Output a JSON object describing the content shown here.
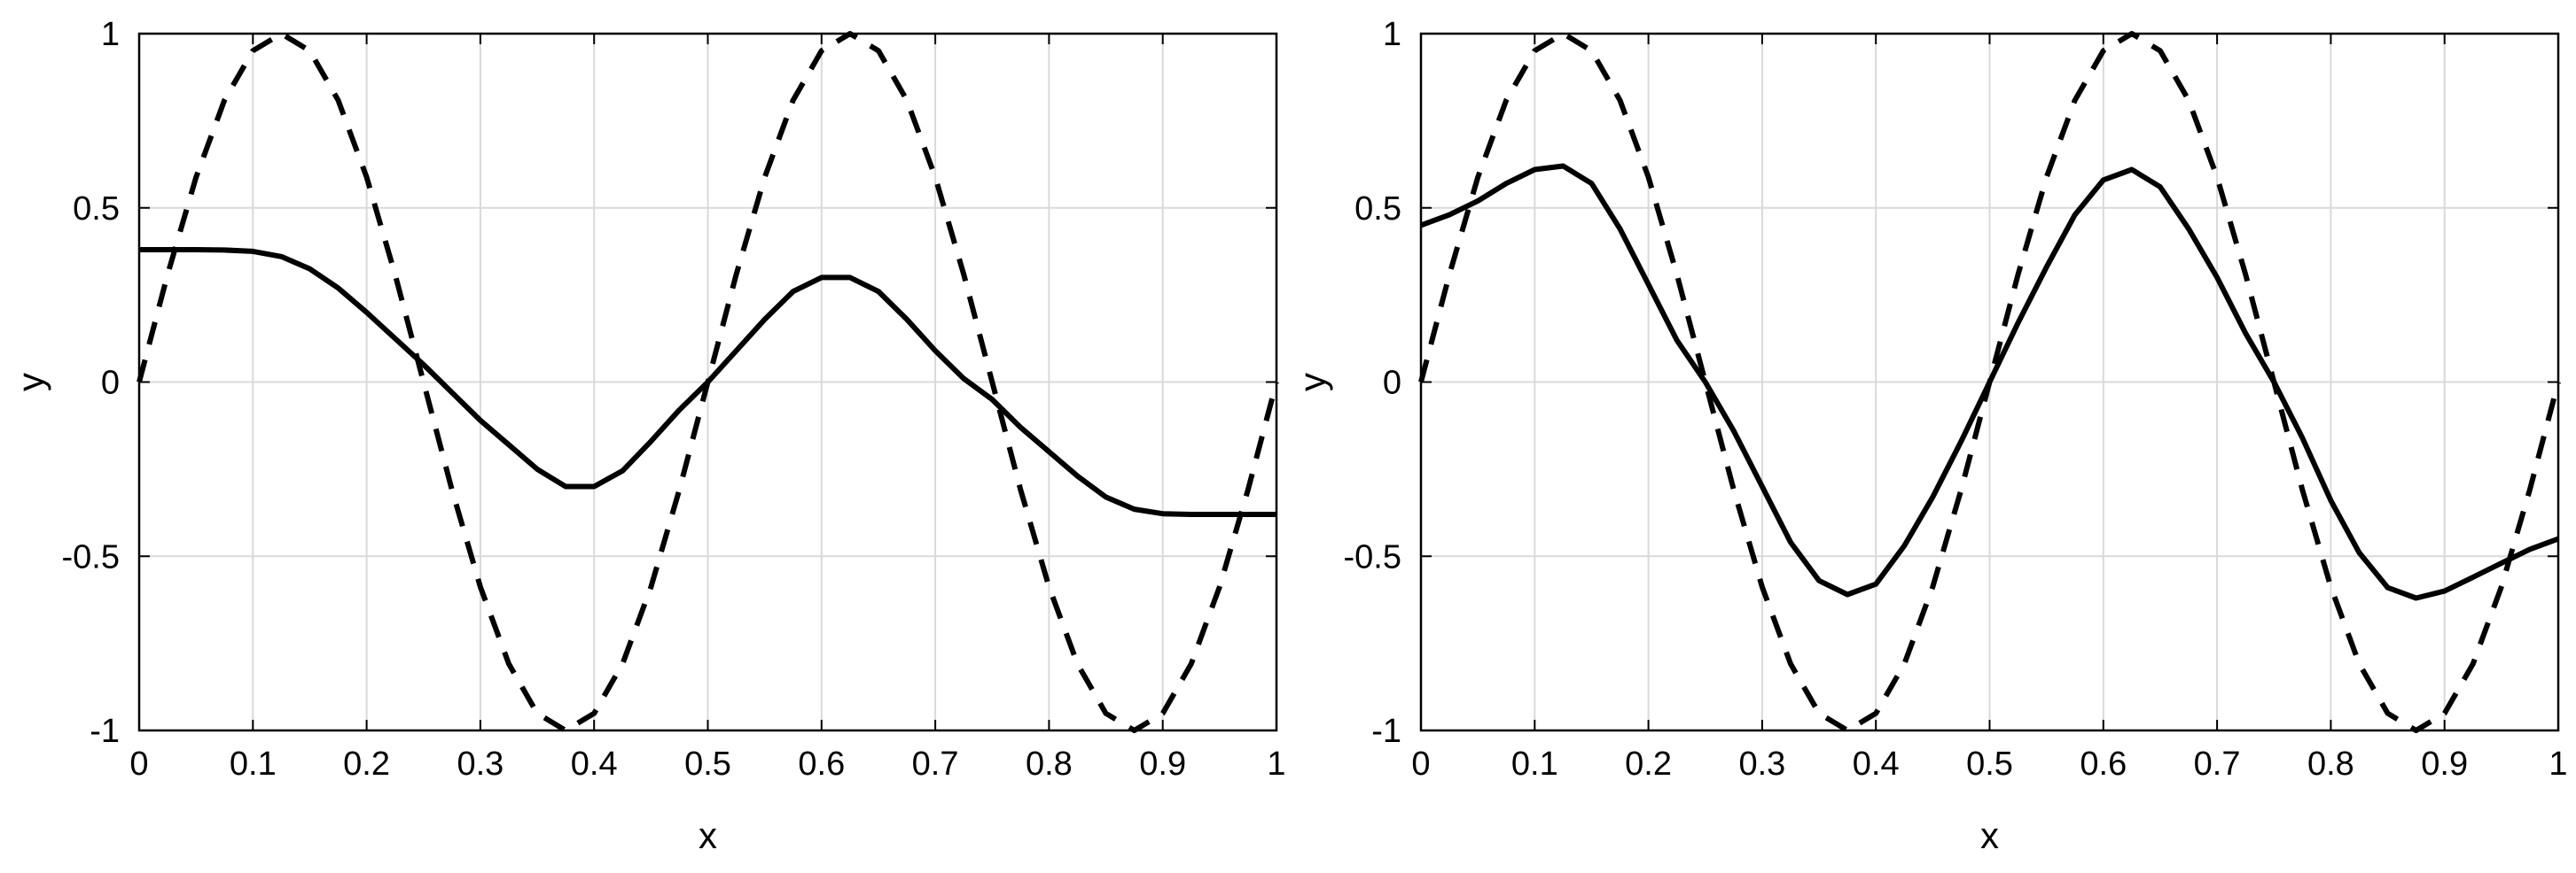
{
  "chart_data": [
    {
      "type": "line",
      "xlabel": "x",
      "ylabel": "y",
      "xlim": [
        0,
        1
      ],
      "ylim": [
        -1,
        1
      ],
      "xticks": [
        0,
        0.1,
        0.2,
        0.3,
        0.4,
        0.5,
        0.6,
        0.7,
        0.8,
        0.9,
        1
      ],
      "xtick_labels": [
        "0",
        "0.1",
        "0.2",
        "0.3",
        "0.4",
        "0.5",
        "0.6",
        "0.7",
        "0.8",
        "0.9",
        "1"
      ],
      "yticks": [
        -1,
        -0.5,
        0,
        0.5,
        1
      ],
      "ytick_labels": [
        "-1",
        "-0.5",
        "0",
        "0.5",
        "1"
      ],
      "grid": true,
      "series": [
        {
          "style": "dashed",
          "color": "#000000",
          "x": [
            0,
            0.025,
            0.05,
            0.075,
            0.1,
            0.125,
            0.15,
            0.175,
            0.2,
            0.225,
            0.25,
            0.275,
            0.3,
            0.325,
            0.35,
            0.375,
            0.4,
            0.425,
            0.45,
            0.475,
            0.5,
            0.525,
            0.55,
            0.575,
            0.6,
            0.625,
            0.65,
            0.675,
            0.7,
            0.725,
            0.75,
            0.775,
            0.8,
            0.825,
            0.85,
            0.875,
            0.9,
            0.925,
            0.95,
            0.975,
            1
          ],
          "y": [
            0,
            0.309,
            0.588,
            0.809,
            0.951,
            1,
            0.951,
            0.809,
            0.588,
            0.309,
            0,
            -0.309,
            -0.588,
            -0.809,
            -0.951,
            -1,
            -0.951,
            -0.809,
            -0.588,
            -0.309,
            0,
            0.309,
            0.588,
            0.809,
            0.951,
            1,
            0.951,
            0.809,
            0.588,
            0.309,
            0,
            -0.309,
            -0.588,
            -0.809,
            -0.951,
            -1,
            -0.951,
            -0.809,
            -0.588,
            -0.309,
            0
          ]
        },
        {
          "style": "solid",
          "color": "#000000",
          "x": [
            0,
            0.025,
            0.05,
            0.075,
            0.1,
            0.125,
            0.15,
            0.175,
            0.2,
            0.225,
            0.25,
            0.275,
            0.3,
            0.325,
            0.35,
            0.375,
            0.4,
            0.425,
            0.45,
            0.475,
            0.5,
            0.525,
            0.55,
            0.575,
            0.6,
            0.625,
            0.65,
            0.675,
            0.7,
            0.725,
            0.75,
            0.775,
            0.8,
            0.825,
            0.85,
            0.875,
            0.9,
            0.925,
            0.95,
            0.975,
            1
          ],
          "y": [
            0.38,
            0.38,
            0.38,
            0.379,
            0.375,
            0.36,
            0.325,
            0.27,
            0.2,
            0.125,
            0.05,
            -0.03,
            -0.11,
            -0.18,
            -0.25,
            -0.3,
            -0.3,
            -0.255,
            -0.17,
            -0.08,
            0,
            0.09,
            0.18,
            0.26,
            0.3,
            0.3,
            0.26,
            0.18,
            0.09,
            0.01,
            -0.05,
            -0.13,
            -0.2,
            -0.27,
            -0.33,
            -0.365,
            -0.378,
            -0.38,
            -0.38,
            -0.38,
            -0.38
          ]
        }
      ]
    },
    {
      "type": "line",
      "xlabel": "x",
      "ylabel": "y",
      "xlim": [
        0,
        1
      ],
      "ylim": [
        -1,
        1
      ],
      "xticks": [
        0,
        0.1,
        0.2,
        0.3,
        0.4,
        0.5,
        0.6,
        0.7,
        0.8,
        0.9,
        1
      ],
      "xtick_labels": [
        "0",
        "0.1",
        "0.2",
        "0.3",
        "0.4",
        "0.5",
        "0.6",
        "0.7",
        "0.8",
        "0.9",
        "1"
      ],
      "yticks": [
        -1,
        -0.5,
        0,
        0.5,
        1
      ],
      "ytick_labels": [
        "-1",
        "-0.5",
        "0",
        "0.5",
        "1"
      ],
      "grid": true,
      "series": [
        {
          "style": "dashed",
          "color": "#000000",
          "x": [
            0,
            0.025,
            0.05,
            0.075,
            0.1,
            0.125,
            0.15,
            0.175,
            0.2,
            0.225,
            0.25,
            0.275,
            0.3,
            0.325,
            0.35,
            0.375,
            0.4,
            0.425,
            0.45,
            0.475,
            0.5,
            0.525,
            0.55,
            0.575,
            0.6,
            0.625,
            0.65,
            0.675,
            0.7,
            0.725,
            0.75,
            0.775,
            0.8,
            0.825,
            0.85,
            0.875,
            0.9,
            0.925,
            0.95,
            0.975,
            1
          ],
          "y": [
            0,
            0.309,
            0.588,
            0.809,
            0.951,
            1,
            0.951,
            0.809,
            0.588,
            0.309,
            0,
            -0.309,
            -0.588,
            -0.809,
            -0.951,
            -1,
            -0.951,
            -0.809,
            -0.588,
            -0.309,
            0,
            0.309,
            0.588,
            0.809,
            0.951,
            1,
            0.951,
            0.809,
            0.588,
            0.309,
            0,
            -0.309,
            -0.588,
            -0.809,
            -0.951,
            -1,
            -0.951,
            -0.809,
            -0.588,
            -0.309,
            0
          ]
        },
        {
          "style": "solid",
          "color": "#000000",
          "x": [
            0,
            0.025,
            0.05,
            0.075,
            0.1,
            0.125,
            0.15,
            0.175,
            0.2,
            0.225,
            0.25,
            0.275,
            0.3,
            0.325,
            0.35,
            0.375,
            0.4,
            0.425,
            0.45,
            0.475,
            0.5,
            0.525,
            0.55,
            0.575,
            0.6,
            0.625,
            0.65,
            0.675,
            0.7,
            0.725,
            0.75,
            0.775,
            0.8,
            0.825,
            0.85,
            0.875,
            0.9,
            0.925,
            0.95,
            0.975,
            1
          ],
          "y": [
            0.45,
            0.48,
            0.52,
            0.57,
            0.61,
            0.62,
            0.57,
            0.44,
            0.28,
            0.12,
            0,
            -0.14,
            -0.3,
            -0.46,
            -0.57,
            -0.61,
            -0.58,
            -0.47,
            -0.33,
            -0.17,
            0,
            0.17,
            0.33,
            0.48,
            0.58,
            0.61,
            0.56,
            0.44,
            0.3,
            0.14,
            0,
            -0.16,
            -0.34,
            -0.49,
            -0.59,
            -0.62,
            -0.6,
            -0.56,
            -0.52,
            -0.48,
            -0.45
          ]
        }
      ]
    }
  ]
}
